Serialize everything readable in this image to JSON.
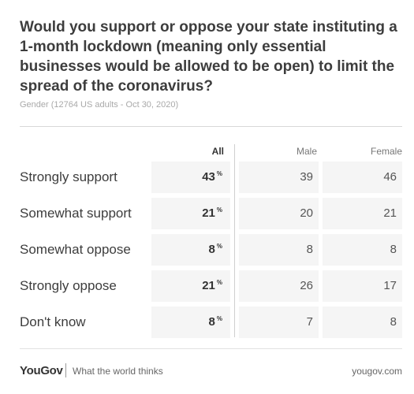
{
  "header": {
    "title": "Would you support or oppose your state instituting a 1-month lockdown (meaning only essential businesses would be allowed to be open) to limit the spread of the coronavirus?",
    "subtitle": "Gender (12764 US adults - Oct 30, 2020)"
  },
  "footer": {
    "brand": "YouGov",
    "tagline": "What the world thinks",
    "site": "yougov.com"
  },
  "chart_data": {
    "type": "table",
    "title": "Would you support or oppose your state instituting a 1-month lockdown (meaning only essential businesses would be allowed to be open) to limit the spread of the coronavirus?",
    "subtitle": "Gender (12764 US adults - Oct 30, 2020)",
    "columns": [
      "All",
      "Male",
      "Female"
    ],
    "pct_symbol": "%",
    "rows": [
      {
        "label": "Strongly support",
        "all": "43",
        "male": "39",
        "female": "46"
      },
      {
        "label": "Somewhat support",
        "all": "21",
        "male": "20",
        "female": "21"
      },
      {
        "label": "Somewhat oppose",
        "all": "8",
        "male": "8",
        "female": "8"
      },
      {
        "label": "Strongly oppose",
        "all": "21",
        "male": "26",
        "female": "17"
      },
      {
        "label": "Don't know",
        "all": "8",
        "male": "7",
        "female": "8"
      }
    ]
  }
}
